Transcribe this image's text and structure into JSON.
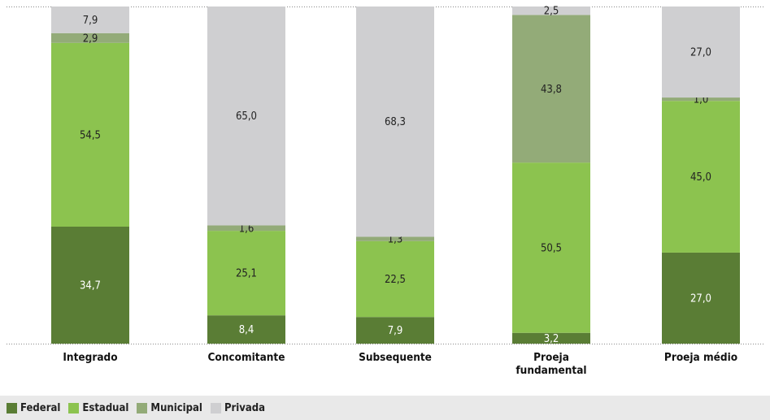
{
  "chart_data": {
    "type": "bar",
    "stacked": true,
    "categories": [
      [
        "Integrado"
      ],
      [
        "Concomitante"
      ],
      [
        "Subsequente"
      ],
      [
        "Proeja",
        "fundamental"
      ],
      [
        "Proeja médio"
      ]
    ],
    "series": [
      {
        "name": "Federal",
        "color": "#5a7d35",
        "values": [
          34.7,
          8.4,
          7.9,
          3.2,
          27.0
        ],
        "labels": [
          "34,7",
          "8,4",
          "7,9",
          "3,2",
          "27,0"
        ]
      },
      {
        "name": "Estadual",
        "color": "#8cc34f",
        "values": [
          54.5,
          25.1,
          22.5,
          50.5,
          45.0
        ],
        "labels": [
          "54,5",
          "25,1",
          "22,5",
          "50,5",
          "45,0"
        ]
      },
      {
        "name": "Municipal",
        "color": "#93ab78",
        "values": [
          2.9,
          1.6,
          1.3,
          43.8,
          1.0
        ],
        "labels": [
          "2,9",
          "1,6",
          "1,3",
          "43,8",
          "1,0"
        ]
      },
      {
        "name": "Privada",
        "color": "#cfcfd1",
        "values": [
          7.9,
          65.0,
          68.3,
          2.5,
          27.0
        ],
        "labels": [
          "7,9",
          "65,0",
          "68,3",
          "2,5",
          "27,0"
        ]
      }
    ],
    "ylim": [
      0,
      100
    ],
    "grid": false,
    "legend_position": "bottom-left",
    "xlabel": "",
    "ylabel": ""
  }
}
